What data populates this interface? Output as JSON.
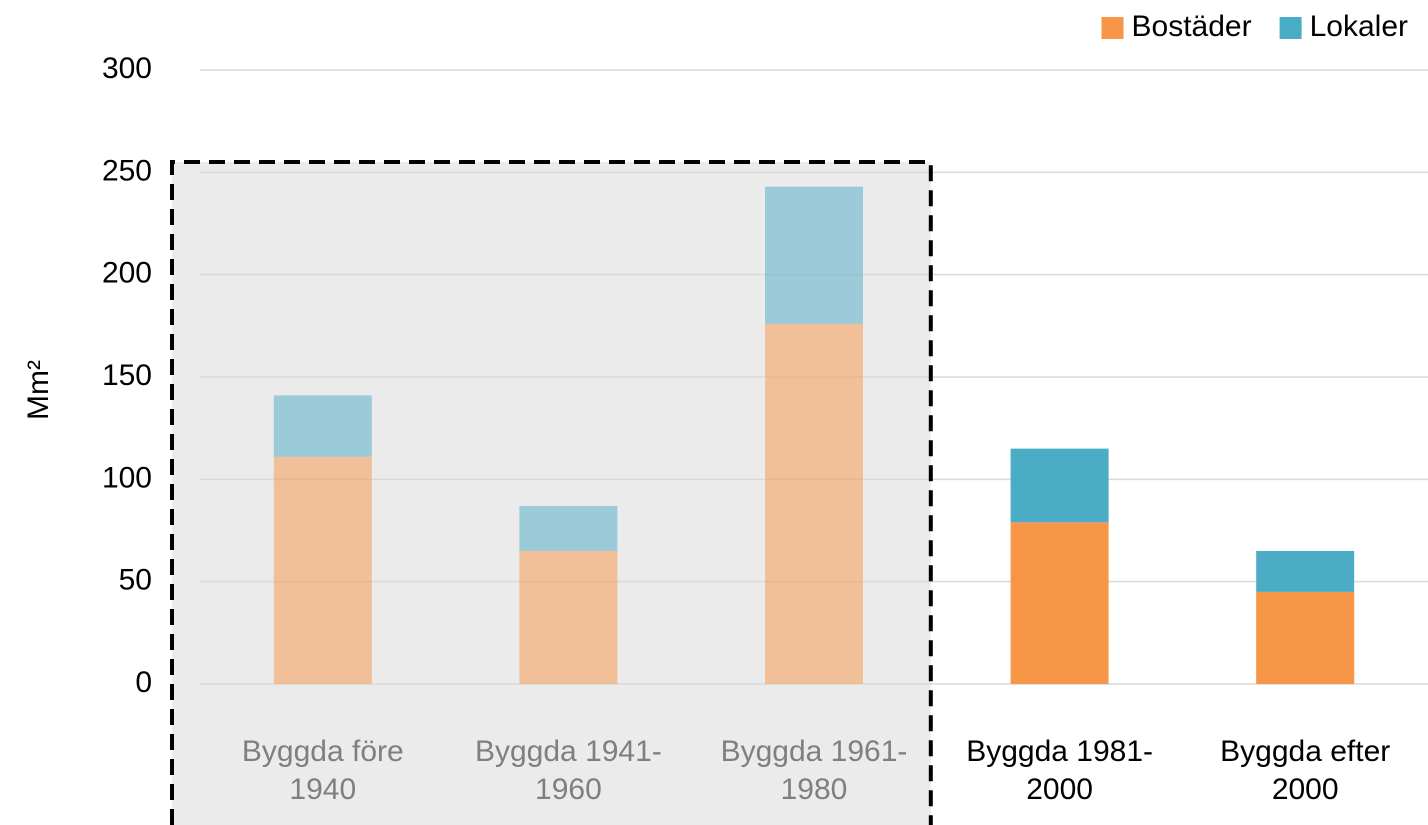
{
  "chart_data": {
    "type": "stacked_bar",
    "y_label": "Mm²",
    "categories": [
      "Byggda före 1940",
      "Byggda 1941-1960",
      "Byggda 1961-1980",
      "Byggda 1981-2000",
      "Byggda efter 2000"
    ],
    "faded": [
      true,
      true,
      true,
      false,
      false
    ],
    "series": [
      {
        "name": "Bostäder",
        "color": "#f79646",
        "values": [
          111,
          65,
          176,
          79,
          45
        ]
      },
      {
        "name": "Lokaler",
        "color": "#4bacc6",
        "values": [
          30,
          22,
          67,
          36,
          20
        ]
      }
    ],
    "ylim": [
      0,
      300
    ],
    "yticks": [
      0,
      50,
      100,
      150,
      200,
      250,
      300
    ],
    "grid": true,
    "legend": "top-right"
  }
}
